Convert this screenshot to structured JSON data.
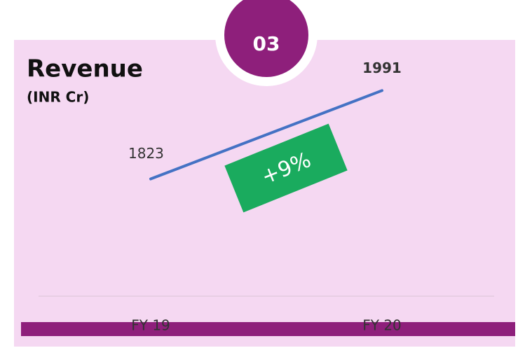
{
  "chart_data": {
    "type": "line",
    "title": "Revenue",
    "subtitle": "(INR Cr)",
    "badge": "03",
    "annotation": "+9%",
    "categories": [
      "FY 19",
      "FY 20"
    ],
    "series": [
      {
        "name": "Revenue",
        "color": "#4472c4",
        "values": [
          1823,
          1991
        ]
      }
    ],
    "ylim": [
      1600,
      2050
    ]
  }
}
